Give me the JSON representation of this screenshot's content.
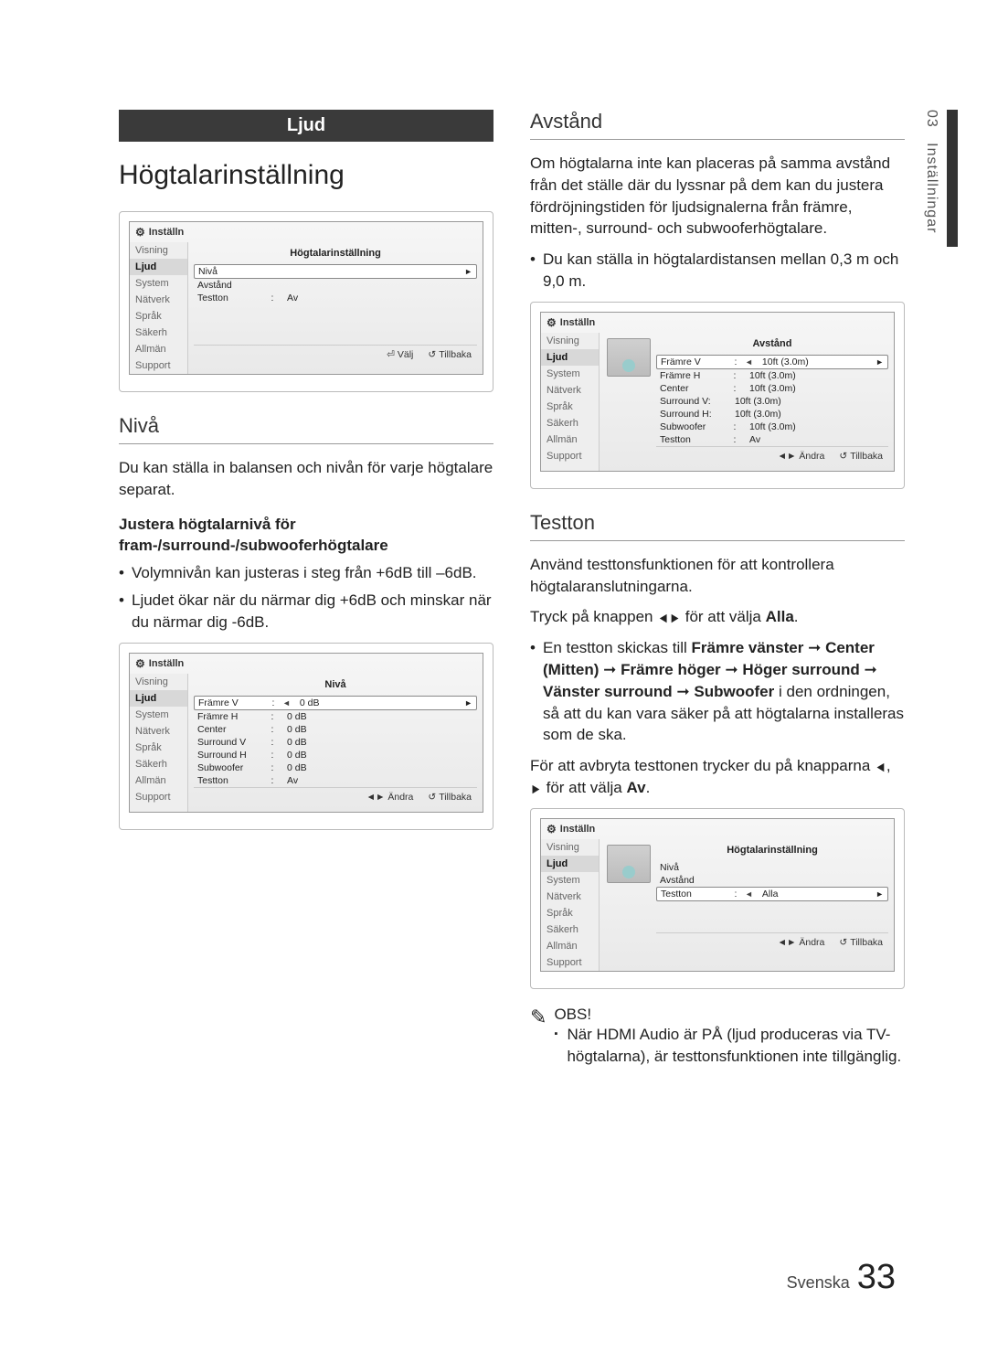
{
  "side_tab": {
    "num": "03",
    "label": "Inställningar"
  },
  "left": {
    "section_bar": "Ljud",
    "heading": "Högtalarinställning",
    "niva_heading": "Nivå",
    "niva_p1": "Du kan ställa in balansen och nivån för varje högtalare separat.",
    "niva_bold": "Justera högtalarnivå för fram-/surround-/subwooferhögtalare",
    "niva_bullets": [
      "Volymnivån kan justeras i steg från +6dB till –6dB.",
      "Ljudet ökar när du närmar dig +6dB och minskar när du närmar dig -6dB."
    ]
  },
  "right": {
    "avstand_heading": "Avstånd",
    "avstand_p1": "Om högtalarna inte kan placeras på samma avstånd från det ställe där du lyssnar på dem kan du justera fördröjningstiden för ljudsignalerna från främre, mitten-, surround- och subwooferhögtalare.",
    "avstand_bullets": [
      "Du kan ställa in högtalardistansen mellan 0,3 m och 9,0 m."
    ],
    "testton_heading": "Testton",
    "testton_p1": "Använd testtonsfunktionen för att kontrollera högtalaranslutningarna.",
    "testton_p2_a": "Tryck på knappen ",
    "testton_p2_b": " för att välja ",
    "testton_p2_alla": "Alla",
    "testton_seq_intro": "En testton skickas till ",
    "testton_seq": [
      "Främre vänster",
      "Center (Mitten)",
      "Främre höger",
      "Höger surround",
      "Vänster surround",
      "Subwoofer"
    ],
    "testton_seq_tail": " i den ordningen, så att du kan vara säker på att högtalarna installeras som de ska.",
    "testton_p3_a": "För att avbryta testtonen trycker du på knapparna ",
    "testton_p3_b": " för att välja ",
    "testton_p3_av": "Av",
    "obs_label": "OBS!",
    "obs_item": "När HDMI Audio är PÅ (ljud produceras via TV-högtalarna), är testtonsfunktionen inte tillgänglig."
  },
  "osd": {
    "brand": "Inställn",
    "sidebar": [
      "Visning",
      "Ljud",
      "System",
      "Nätverk",
      "Språk",
      "Säkerh",
      "Allmän",
      "Support"
    ],
    "active_idx": 1,
    "footer_valj": "Välj",
    "footer_tillbaka": "Tillbaka",
    "footer_andra": "Ändra",
    "panel1": {
      "title": "Högtalarinställning",
      "rows": [
        {
          "label": "Nivå",
          "type": "nav"
        },
        {
          "label": "Avstånd",
          "type": "plain"
        },
        {
          "label": "Testton",
          "col": ":",
          "val": "Av",
          "type": "kv"
        }
      ]
    },
    "panel2": {
      "title": "Nivå",
      "rows": [
        {
          "label": "Främre V",
          "col": ":",
          "arrow": "◄",
          "val": "0 dB",
          "chev": "►",
          "sel": true
        },
        {
          "label": "Främre H",
          "col": ":",
          "val": "0 dB"
        },
        {
          "label": "Center",
          "col": ":",
          "val": "0 dB"
        },
        {
          "label": "Surround V",
          "col": ":",
          "val": "0 dB"
        },
        {
          "label": "Surround H",
          "col": ":",
          "val": "0 dB"
        },
        {
          "label": "Subwoofer",
          "col": ":",
          "val": "0 dB"
        },
        {
          "label": "Testton",
          "col": ":",
          "val": "Av"
        }
      ]
    },
    "panel3": {
      "title": "Avstånd",
      "rows": [
        {
          "label": "Främre V",
          "col": ":",
          "arrow": "◄",
          "val": "10ft (3.0m)",
          "chev": "►",
          "sel": true
        },
        {
          "label": "Främre H",
          "col": ":",
          "val": "10ft (3.0m)"
        },
        {
          "label": "Center",
          "col": ":",
          "val": "10ft (3.0m)"
        },
        {
          "label": "Surround V:",
          "val": "10ft (3.0m)"
        },
        {
          "label": "Surround H:",
          "val": "10ft (3.0m)"
        },
        {
          "label": "Subwoofer",
          "col": ":",
          "val": "10ft (3.0m)"
        },
        {
          "label": "Testton",
          "col": ":",
          "val": "Av"
        }
      ]
    },
    "panel4": {
      "title": "Högtalarinställning",
      "rows": [
        {
          "label": "Nivå",
          "type": "plain"
        },
        {
          "label": "Avstånd",
          "type": "plain"
        },
        {
          "label": "Testton",
          "col": ":",
          "arrow": "◄",
          "val": "Alla",
          "chev": "►",
          "sel": true
        }
      ]
    }
  },
  "footer": {
    "lang": "Svenska",
    "page": "33"
  }
}
